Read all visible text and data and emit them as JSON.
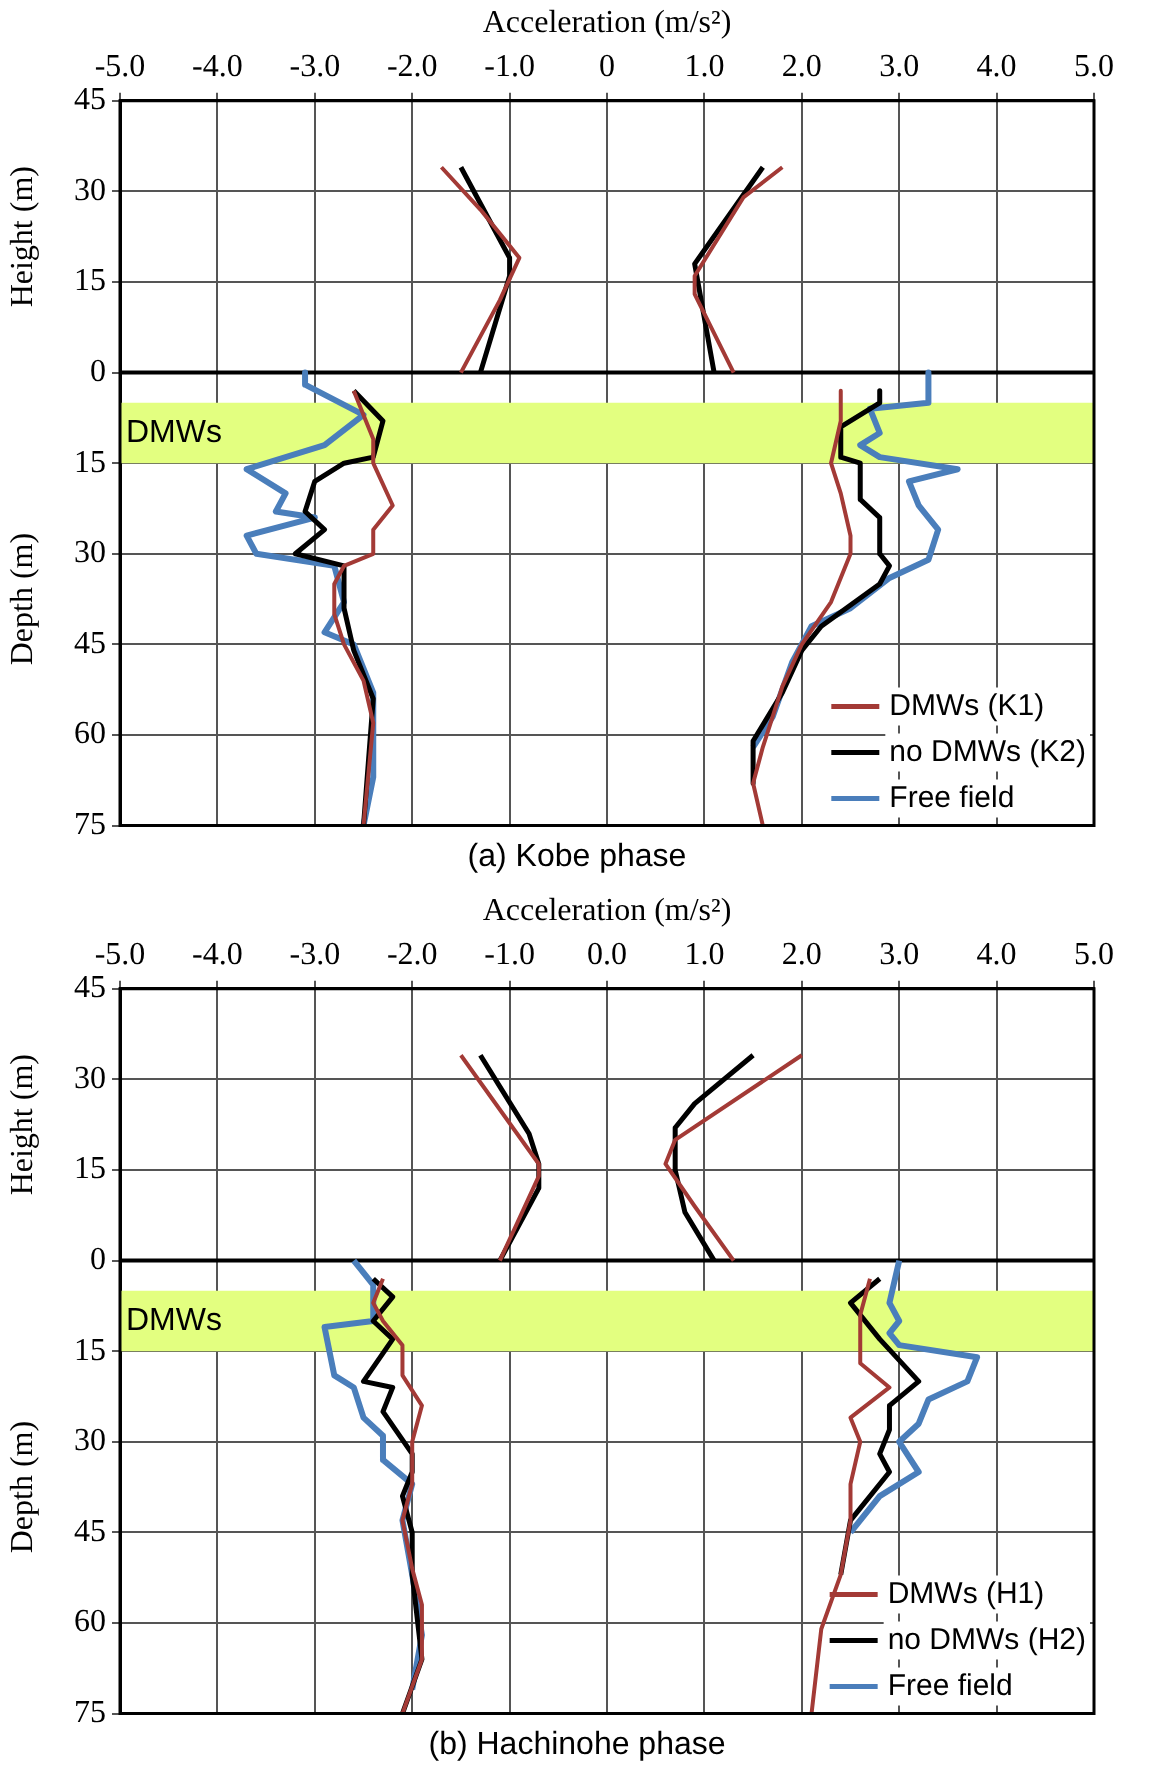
{
  "chart_data": [
    {
      "type": "line",
      "title": "(a) Kobe phase",
      "xlabel": "Acceleration (m/s²)",
      "ylabel": "Depth (m)",
      "annotations": [
        "Height (m)"
      ],
      "xlim": [
        -5,
        5
      ],
      "xticks": [
        {
          "value": -5,
          "label": "-5.0"
        },
        {
          "value": -4,
          "label": "-4.0"
        },
        {
          "value": -3,
          "label": "-3.0"
        },
        {
          "value": -2,
          "label": "-2.0"
        },
        {
          "value": -1,
          "label": "-1.0"
        },
        {
          "value": 0,
          "label": "0"
        },
        {
          "value": 1,
          "label": "1.0"
        },
        {
          "value": 2,
          "label": "2.0"
        },
        {
          "value": 3,
          "label": "3.0"
        },
        {
          "value": 4,
          "label": "4.0"
        },
        {
          "value": 5,
          "label": "5.0"
        }
      ],
      "ylim": [
        75,
        -45
      ],
      "yticks": [
        {
          "value": -45,
          "label": "45"
        },
        {
          "value": -30,
          "label": "30"
        },
        {
          "value": -15,
          "label": "15"
        },
        0,
        15,
        30,
        45,
        60,
        75
      ],
      "grid": true,
      "legend": "bottom right",
      "marker": "none",
      "bands": [
        {
          "axis": "y",
          "from": 5,
          "to": 15,
          "label": "DMWs",
          "color": "#e3ff80"
        }
      ],
      "ref_lines": [
        {
          "axis": "y",
          "value": 0,
          "color": "#000000"
        }
      ],
      "series": [
        {
          "name": "DMWs (K1)",
          "color": "#a33a36",
          "x": [
            -1.7,
            -1.3,
            -0.9,
            -1.1,
            -1.5,
            null,
            1.8,
            1.4,
            0.9,
            0.9,
            1.3,
            null,
            -2.6,
            -2.5,
            -2.4,
            -2.4,
            -2.2,
            -2.4,
            -2.4,
            -2.7,
            -2.8,
            -2.8,
            -2.7,
            -2.5,
            -2.4,
            -2.5,
            null,
            2.4,
            2.4,
            2.3,
            2.4,
            2.5,
            2.5,
            2.3,
            2.0,
            1.8,
            1.6,
            1.5,
            1.6
          ],
          "values": [
            -34,
            -27,
            -19,
            -12,
            0,
            null,
            -34,
            -29,
            -16,
            -13,
            0,
            null,
            3,
            7,
            11,
            15,
            22,
            26,
            30,
            32,
            35,
            40,
            45,
            51,
            58,
            75,
            null,
            3,
            8,
            15,
            20,
            27,
            30,
            38,
            45,
            52,
            62,
            68,
            75
          ]
        },
        {
          "name": "no DMWs (K2)",
          "color": "#000000",
          "x": [
            -1.5,
            -1.0,
            -1.0,
            -1.3,
            null,
            1.6,
            0.9,
            1.1,
            null,
            -2.6,
            -2.3,
            -2.4,
            -2.7,
            -3.0,
            -3.1,
            -2.9,
            -3.2,
            -2.7,
            -2.7,
            -2.6,
            -2.4,
            -2.5,
            null,
            2.8,
            2.8,
            2.4,
            2.4,
            2.6,
            2.6,
            2.8,
            2.8,
            2.9,
            2.8,
            2.2,
            2.0,
            1.8,
            1.5,
            1.5
          ],
          "values": [
            -34,
            -19,
            -16,
            0,
            null,
            -34,
            -18,
            0,
            null,
            3,
            8,
            14,
            15,
            18,
            23,
            26,
            30,
            32,
            39,
            46,
            54,
            75,
            null,
            3,
            5,
            9,
            14,
            15,
            21,
            24,
            30,
            32,
            35,
            42,
            46,
            53,
            61,
            68
          ]
        },
        {
          "name": "Free field",
          "color": "#4a7ebb",
          "x": [
            -3.1,
            -3.1,
            -2.5,
            -2.9,
            -3.7,
            -3.3,
            -3.4,
            -3.0,
            -3.7,
            -3.6,
            -2.8,
            -2.7,
            -2.9,
            -2.6,
            -2.4,
            -2.4,
            -2.5,
            null,
            3.3,
            3.3,
            2.7,
            2.8,
            2.6,
            2.8,
            3.6,
            3.1,
            3.2,
            3.4,
            3.3,
            2.9,
            2.5,
            2.1,
            1.9,
            1.7,
            1.5
          ],
          "values": [
            0,
            2,
            7,
            12,
            16,
            20,
            23,
            24,
            27,
            30,
            32,
            38,
            43,
            45,
            53,
            67,
            75,
            null,
            0,
            5,
            6,
            10,
            12,
            14,
            16,
            18,
            22,
            26,
            31,
            34,
            39,
            42,
            48,
            57,
            62
          ]
        }
      ]
    },
    {
      "type": "line",
      "title": "(b) Hachinohe phase",
      "xlabel": "Acceleration (m/s²)",
      "ylabel": "Depth (m)",
      "annotations": [
        "Height (m)"
      ],
      "xlim": [
        -5,
        5
      ],
      "xticks": [
        {
          "value": -5,
          "label": "-5.0"
        },
        {
          "value": -4,
          "label": "-4.0"
        },
        {
          "value": -3,
          "label": "-3.0"
        },
        {
          "value": -2,
          "label": "-2.0"
        },
        {
          "value": -1,
          "label": "-1.0"
        },
        {
          "value": 0,
          "label": "0.0"
        },
        {
          "value": 1,
          "label": "1.0"
        },
        {
          "value": 2,
          "label": "2.0"
        },
        {
          "value": 3,
          "label": "3.0"
        },
        {
          "value": 4,
          "label": "4.0"
        },
        {
          "value": 5,
          "label": "5.0"
        }
      ],
      "ylim": [
        75,
        -45
      ],
      "yticks": [
        {
          "value": -45,
          "label": "45"
        },
        {
          "value": -30,
          "label": "30"
        },
        {
          "value": -15,
          "label": "15"
        },
        0,
        15,
        30,
        45,
        60,
        75
      ],
      "grid": true,
      "legend": "bottom right",
      "marker": "none",
      "bands": [
        {
          "axis": "y",
          "from": 5,
          "to": 15,
          "label": "DMWs",
          "color": "#e3ff80"
        }
      ],
      "ref_lines": [
        {
          "axis": "y",
          "value": 0,
          "color": "#000000"
        }
      ],
      "series": [
        {
          "name": "DMWs (H1)",
          "color": "#a33a36",
          "x": [
            -1.5,
            -0.7,
            -0.7,
            -1.1,
            null,
            2.0,
            0.7,
            0.6,
            0.9,
            1.3,
            null,
            -2.3,
            -2.4,
            -2.3,
            -2.1,
            -2.1,
            -1.9,
            -2.0,
            -2.0,
            -2.1,
            -2.0,
            -1.9,
            -1.9,
            -2.1,
            null,
            2.7,
            2.6,
            2.6,
            2.9,
            2.5,
            2.6,
            2.5,
            2.5,
            2.4,
            2.2,
            2.1
          ],
          "values": [
            -34,
            -16,
            -14,
            0,
            null,
            -34,
            -20,
            -16,
            -9,
            0,
            null,
            3,
            7,
            10,
            14,
            19,
            24,
            30,
            37,
            43,
            51,
            57,
            66,
            75,
            null,
            3,
            9,
            17,
            21,
            26,
            30,
            37,
            43,
            52,
            61,
            75
          ]
        },
        {
          "name": "no DMWs (H2)",
          "color": "#000000",
          "x": [
            -1.3,
            -0.8,
            -0.7,
            -0.7,
            -1.1,
            null,
            1.5,
            0.9,
            0.7,
            0.7,
            0.8,
            1.1,
            null,
            -2.4,
            -2.2,
            -2.4,
            -2.2,
            -2.5,
            -2.2,
            -2.3,
            -2.0,
            -2.0,
            -2.1,
            -2.0,
            -2.0,
            -1.9,
            -2.1,
            null,
            2.8,
            2.5,
            2.8,
            3.2,
            2.9,
            2.9,
            2.8,
            2.9,
            2.5,
            2.4
          ],
          "values": [
            -34,
            -21,
            -16,
            -12,
            0,
            null,
            -34,
            -26,
            -22,
            -15,
            -8,
            0,
            null,
            3,
            6,
            10,
            13,
            20,
            21,
            25,
            32,
            35,
            39,
            45,
            52,
            66,
            75,
            null,
            3,
            7,
            13,
            20,
            24,
            28,
            32,
            35,
            43,
            52
          ]
        },
        {
          "name": "Free field",
          "color": "#4a7ebb",
          "x": [
            -2.6,
            -2.4,
            -2.4,
            -2.9,
            -2.8,
            -2.6,
            -2.5,
            -2.3,
            -2.3,
            -2.0,
            -2.1,
            -2.0,
            -1.9,
            -2.0,
            null,
            3.0,
            2.9,
            3.0,
            2.9,
            3.0,
            3.8,
            3.7,
            3.3,
            3.2,
            3.0,
            3.2,
            2.8,
            2.5
          ],
          "values": [
            0,
            4,
            10,
            11,
            19,
            21,
            26,
            29,
            33,
            37,
            43,
            52,
            62,
            71,
            null,
            0,
            7,
            10,
            12,
            14,
            16,
            20,
            23,
            27,
            30,
            35,
            39,
            45
          ]
        }
      ]
    }
  ]
}
